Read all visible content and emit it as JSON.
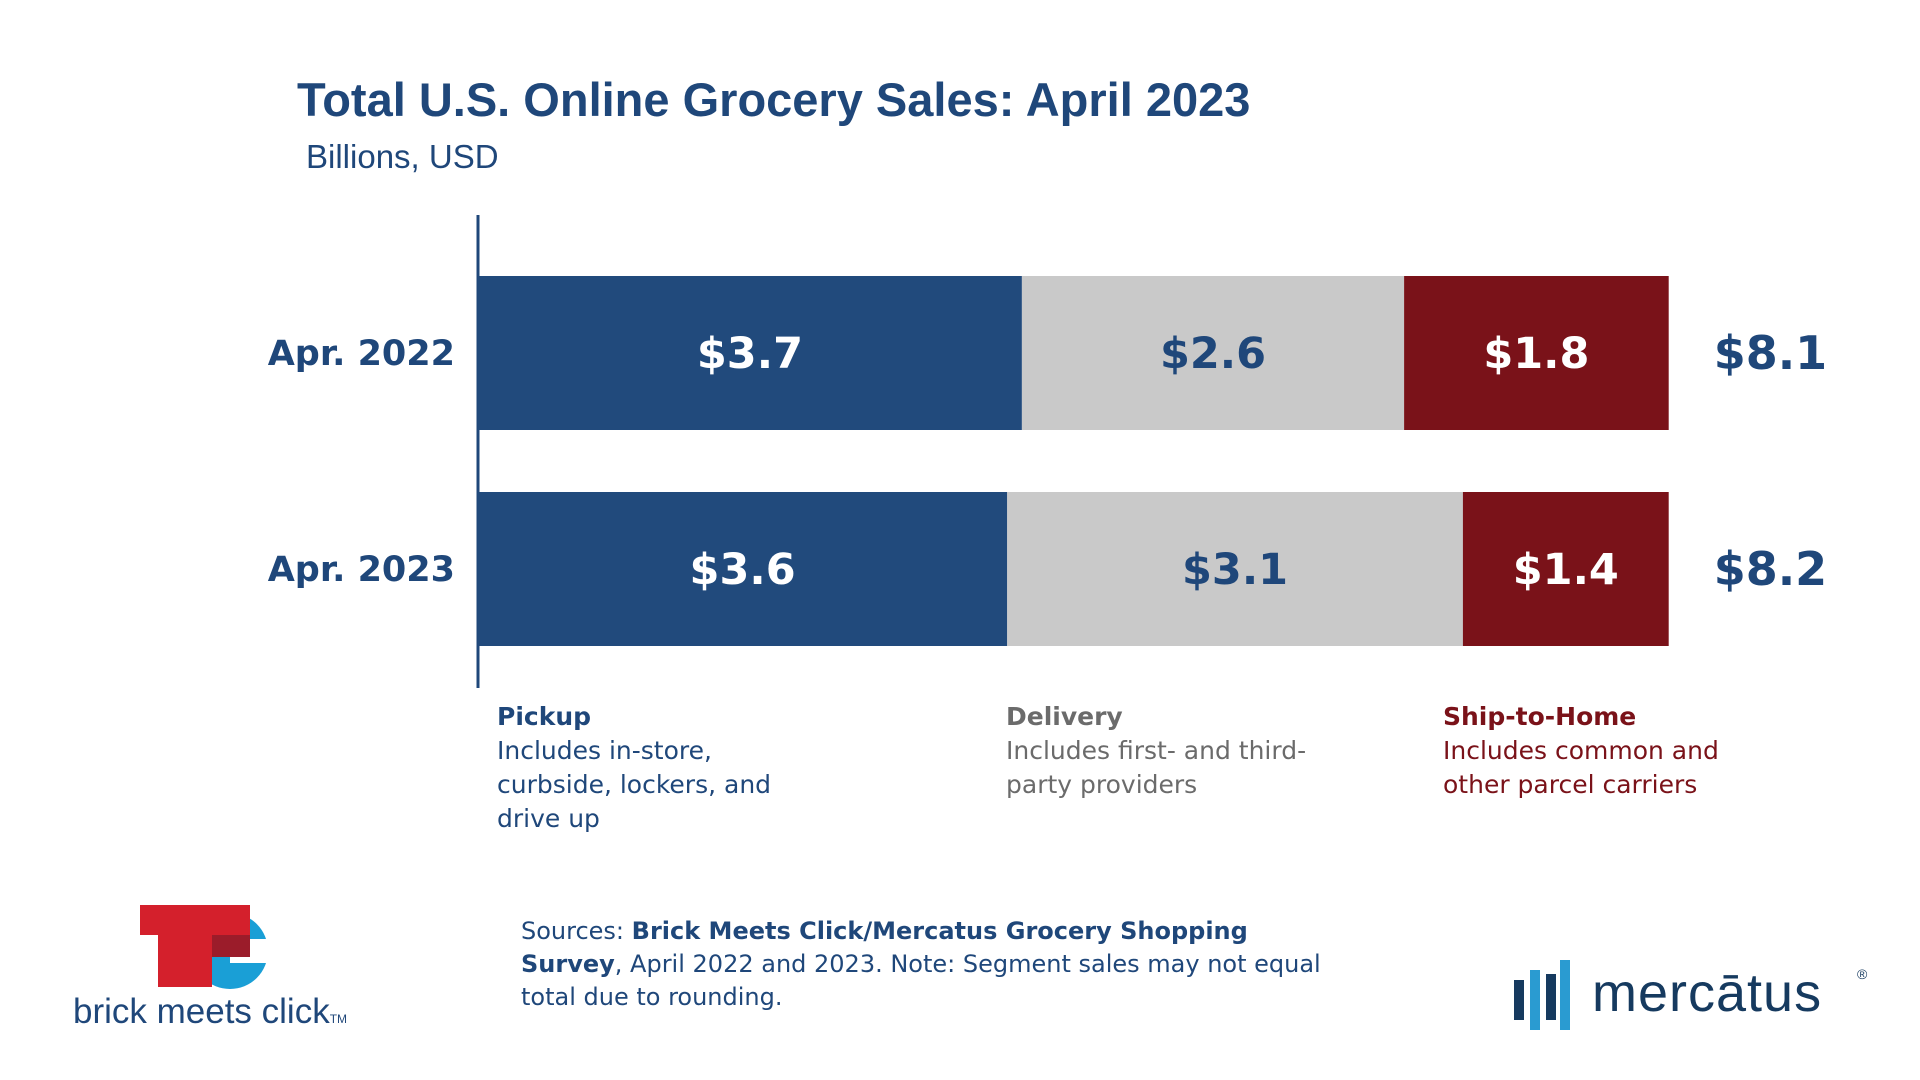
{
  "title": "Total U.S. Online Grocery Sales: April 2023",
  "subtitle": "Billions, USD",
  "colors": {
    "pickup": "#214a7c",
    "delivery": "#c9c9c9",
    "ship_to_home": "#7a1219",
    "axis": "#1f477a",
    "delivery_label": "#1f477a",
    "bar_label_light": "#ffffff"
  },
  "chart_data": {
    "type": "bar",
    "orientation": "horizontal",
    "stacked": true,
    "title": "Total U.S. Online Grocery Sales: April 2023",
    "subtitle": "Billions, USD",
    "categories": [
      "Apr. 2022",
      "Apr. 2023"
    ],
    "series": [
      {
        "name": "Pickup",
        "values": [
          3.7,
          3.6
        ],
        "labels": [
          "$3.7",
          "$3.6"
        ]
      },
      {
        "name": "Delivery",
        "values": [
          2.6,
          3.1
        ],
        "labels": [
          "$2.6",
          "$3.1"
        ]
      },
      {
        "name": "Ship-to-Home",
        "values": [
          1.8,
          1.4
        ],
        "labels": [
          "$1.8",
          "$1.4"
        ]
      }
    ],
    "totals": [
      8.1,
      8.2
    ],
    "total_labels": [
      "$8.1",
      "$8.2"
    ],
    "grid": false,
    "legend_placement": "bottom"
  },
  "legend": [
    {
      "name": "Pickup",
      "description": "Includes in-store, curbside, lockers, and drive up"
    },
    {
      "name": "Delivery",
      "description": "Includes first- and third-party providers"
    },
    {
      "name": "Ship-to-Home",
      "description": "Includes common and other parcel carriers"
    }
  ],
  "sources": {
    "prefix": "Sources: ",
    "bold": "Brick Meets Click/Mercatus Grocery Shopping Survey",
    "rest": ", April 2022 and 2023. Note: Segment sales may not equal total due to rounding."
  },
  "logos": {
    "brick_meets_click": "brick meets click",
    "brick_meets_click_tm": "TM",
    "mercatus": "mercātus",
    "mercatus_reg": "®"
  }
}
